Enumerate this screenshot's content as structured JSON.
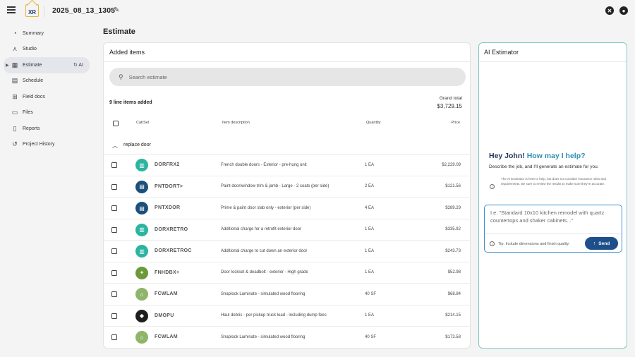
{
  "header": {
    "logo_text": "XR",
    "project_title": "2025_08_13_1305",
    "icons": {
      "menu": "menu-icon",
      "edit": "pencil-icon",
      "xactimate": "xactimate-icon",
      "account": "account-icon"
    }
  },
  "sidebar": {
    "items": [
      {
        "label": "Summary",
        "icon": "gauge-icon"
      },
      {
        "label": "Studio",
        "icon": "compass-icon"
      },
      {
        "label": "Estimate",
        "icon": "calculator-icon",
        "active": true,
        "badge": "AI"
      },
      {
        "label": "Schedule",
        "icon": "calendar-icon"
      },
      {
        "label": "Field docs",
        "icon": "field-docs-icon"
      },
      {
        "label": "Files",
        "icon": "folder-icon"
      },
      {
        "label": "Reports",
        "icon": "report-icon"
      },
      {
        "label": "Project History",
        "icon": "history-icon"
      }
    ]
  },
  "main": {
    "heading": "Estimate",
    "panel_title": "Added items",
    "search_placeholder": "Search estimate",
    "count_label": "9 line items added",
    "grand_total_label": "Grand total",
    "grand_total_value": "$3,729.15",
    "columns": {
      "catsel": "Cat/Sel",
      "description": "Item description",
      "quantity": "Quantity",
      "price": "Price"
    },
    "group": {
      "name": "replace door"
    },
    "rows": [
      {
        "code": "DORFRX2",
        "description": "French double doors - Exterior - pre-hung unit",
        "quantity": "1 EA",
        "price": "$2,229.09",
        "icon": "door-icon",
        "icon_color": "#2bb5a0"
      },
      {
        "code": "PNTDORT>",
        "description": "Paint door/window trim & jamb - Large - 2 coats (per side)",
        "quantity": "2 EA",
        "price": "$121.56",
        "icon": "paint-icon",
        "icon_color": "#1e4f7a"
      },
      {
        "code": "PNTXDOR",
        "description": "Prime & paint door slab only - exterior (per side)",
        "quantity": "4 EA",
        "price": "$289.29",
        "icon": "paint-icon",
        "icon_color": "#1e4f7a"
      },
      {
        "code": "DORXRETRO",
        "description": "Additional charge for a retrofit exterior door",
        "quantity": "1 EA",
        "price": "$335.92",
        "icon": "door-icon",
        "icon_color": "#2bb5a0"
      },
      {
        "code": "DORXRETROC",
        "description": "Additional charge to cut down an exterior door",
        "quantity": "1 EA",
        "price": "$243.73",
        "icon": "door-icon",
        "icon_color": "#2bb5a0"
      },
      {
        "code": "FNHDBX+",
        "description": "Door lockset & deadbolt - exterior - High grade",
        "quantity": "1 EA",
        "price": "$52.98",
        "icon": "hardware-icon",
        "icon_color": "#6a9a3a"
      },
      {
        "code": "FCWLAM",
        "description": "Snaplock Laminate - simulated wood flooring",
        "quantity": "40 SF",
        "price": "$68.84",
        "icon": "flooring-icon",
        "icon_color": "#8fb56a"
      },
      {
        "code": "DMOPU",
        "description": "Haul debris - per pickup truck load - including dump fees",
        "quantity": "1 EA",
        "price": "$214.15",
        "icon": "debris-icon",
        "icon_color": "#1e1e1e"
      },
      {
        "code": "FCWLAM",
        "description": "Snaplock Laminate - simulated wood flooring",
        "quantity": "40 SF",
        "price": "$173.58",
        "icon": "flooring-icon",
        "icon_color": "#8fb56a"
      }
    ]
  },
  "ai": {
    "panel_title": "AI Estimator",
    "greeting_prefix": "Hey John! ",
    "greeting_accent": "How may I help?",
    "subtitle": "Describe the job, and I'll generate an estimate for you.",
    "disclaimer": "The AI Estimator is here to help, but does not consider insurance rules and requirements. Be sure to review the results to make sure they're accurate.",
    "input_placeholder": "I.e. \"Standard 10x10 kitchen remodel with quartz countertops and shaker cabinets...\"",
    "tip": "Tip: Include dimensions and finish quality.",
    "send_label": "Send"
  },
  "colors": {
    "accent": "#2d8fb3",
    "send_button": "#1e4f8a",
    "ai_border": "#7fc9bf"
  }
}
